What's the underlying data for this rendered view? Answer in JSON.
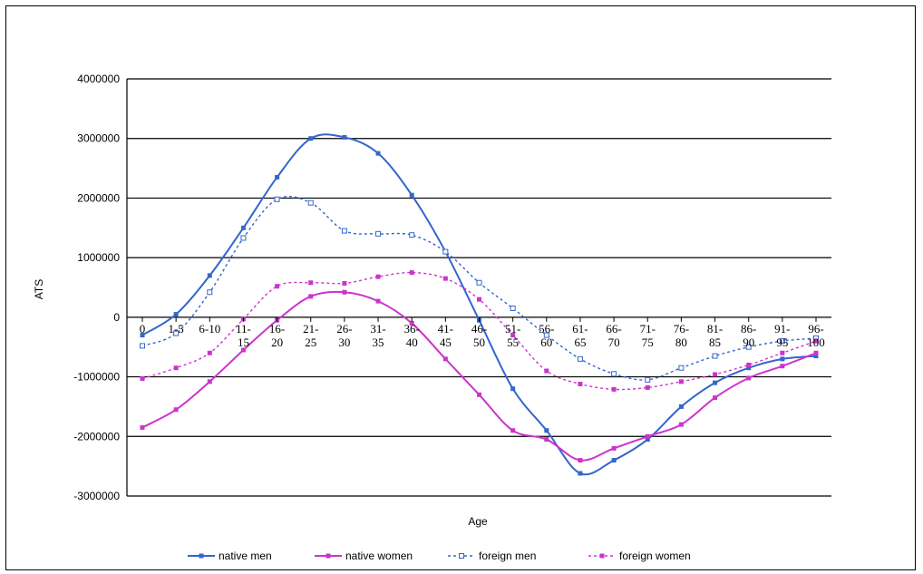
{
  "chart_data": {
    "type": "line",
    "xlabel": "Age",
    "ylabel": "ATS",
    "ylim": [
      -3000000,
      4000000
    ],
    "yticks": [
      4000000,
      3000000,
      2000000,
      1000000,
      0,
      -1000000,
      -2000000,
      -3000000
    ],
    "grid": true,
    "legend_position": "bottom",
    "categories": [
      "0",
      "1-5",
      "6-10",
      "11-15",
      "16-20",
      "21-25",
      "26-30",
      "31-35",
      "36-40",
      "41-45",
      "46-50",
      "51-55",
      "56-60",
      "61-65",
      "66-70",
      "71-75",
      "76-80",
      "81-85",
      "86-90",
      "91-95",
      "96-100"
    ],
    "series": [
      {
        "name": "native men",
        "color": "#3366cc",
        "style": "solid",
        "marker": "filled-square",
        "values": [
          -300000,
          50000,
          700000,
          1500000,
          2350000,
          3000000,
          3020000,
          2750000,
          2050000,
          1100000,
          -50000,
          -1200000,
          -1900000,
          -2620000,
          -2400000,
          -2050000,
          -1500000,
          -1100000,
          -850000,
          -700000,
          -650000
        ]
      },
      {
        "name": "native women",
        "color": "#cc33cc",
        "style": "solid",
        "marker": "filled-square",
        "values": [
          -1850000,
          -1550000,
          -1080000,
          -550000,
          -50000,
          350000,
          420000,
          270000,
          -100000,
          -700000,
          -1300000,
          -1900000,
          -2050000,
          -2400000,
          -2200000,
          -2000000,
          -1800000,
          -1350000,
          -1020000,
          -820000,
          -600000
        ]
      },
      {
        "name": "foreign men",
        "color": "#3366cc",
        "style": "dashed",
        "marker": "open-square",
        "values": [
          -480000,
          -270000,
          420000,
          1330000,
          1980000,
          1920000,
          1450000,
          1400000,
          1380000,
          1100000,
          580000,
          150000,
          -300000,
          -700000,
          -950000,
          -1050000,
          -850000,
          -650000,
          -500000,
          -400000,
          -350000
        ]
      },
      {
        "name": "foreign women",
        "color": "#cc33cc",
        "style": "dashed",
        "marker": "filled-square",
        "values": [
          -1030000,
          -850000,
          -600000,
          -30000,
          520000,
          580000,
          570000,
          680000,
          750000,
          650000,
          300000,
          -300000,
          -900000,
          -1120000,
          -1210000,
          -1180000,
          -1080000,
          -960000,
          -800000,
          -600000,
          -400000
        ]
      }
    ]
  }
}
